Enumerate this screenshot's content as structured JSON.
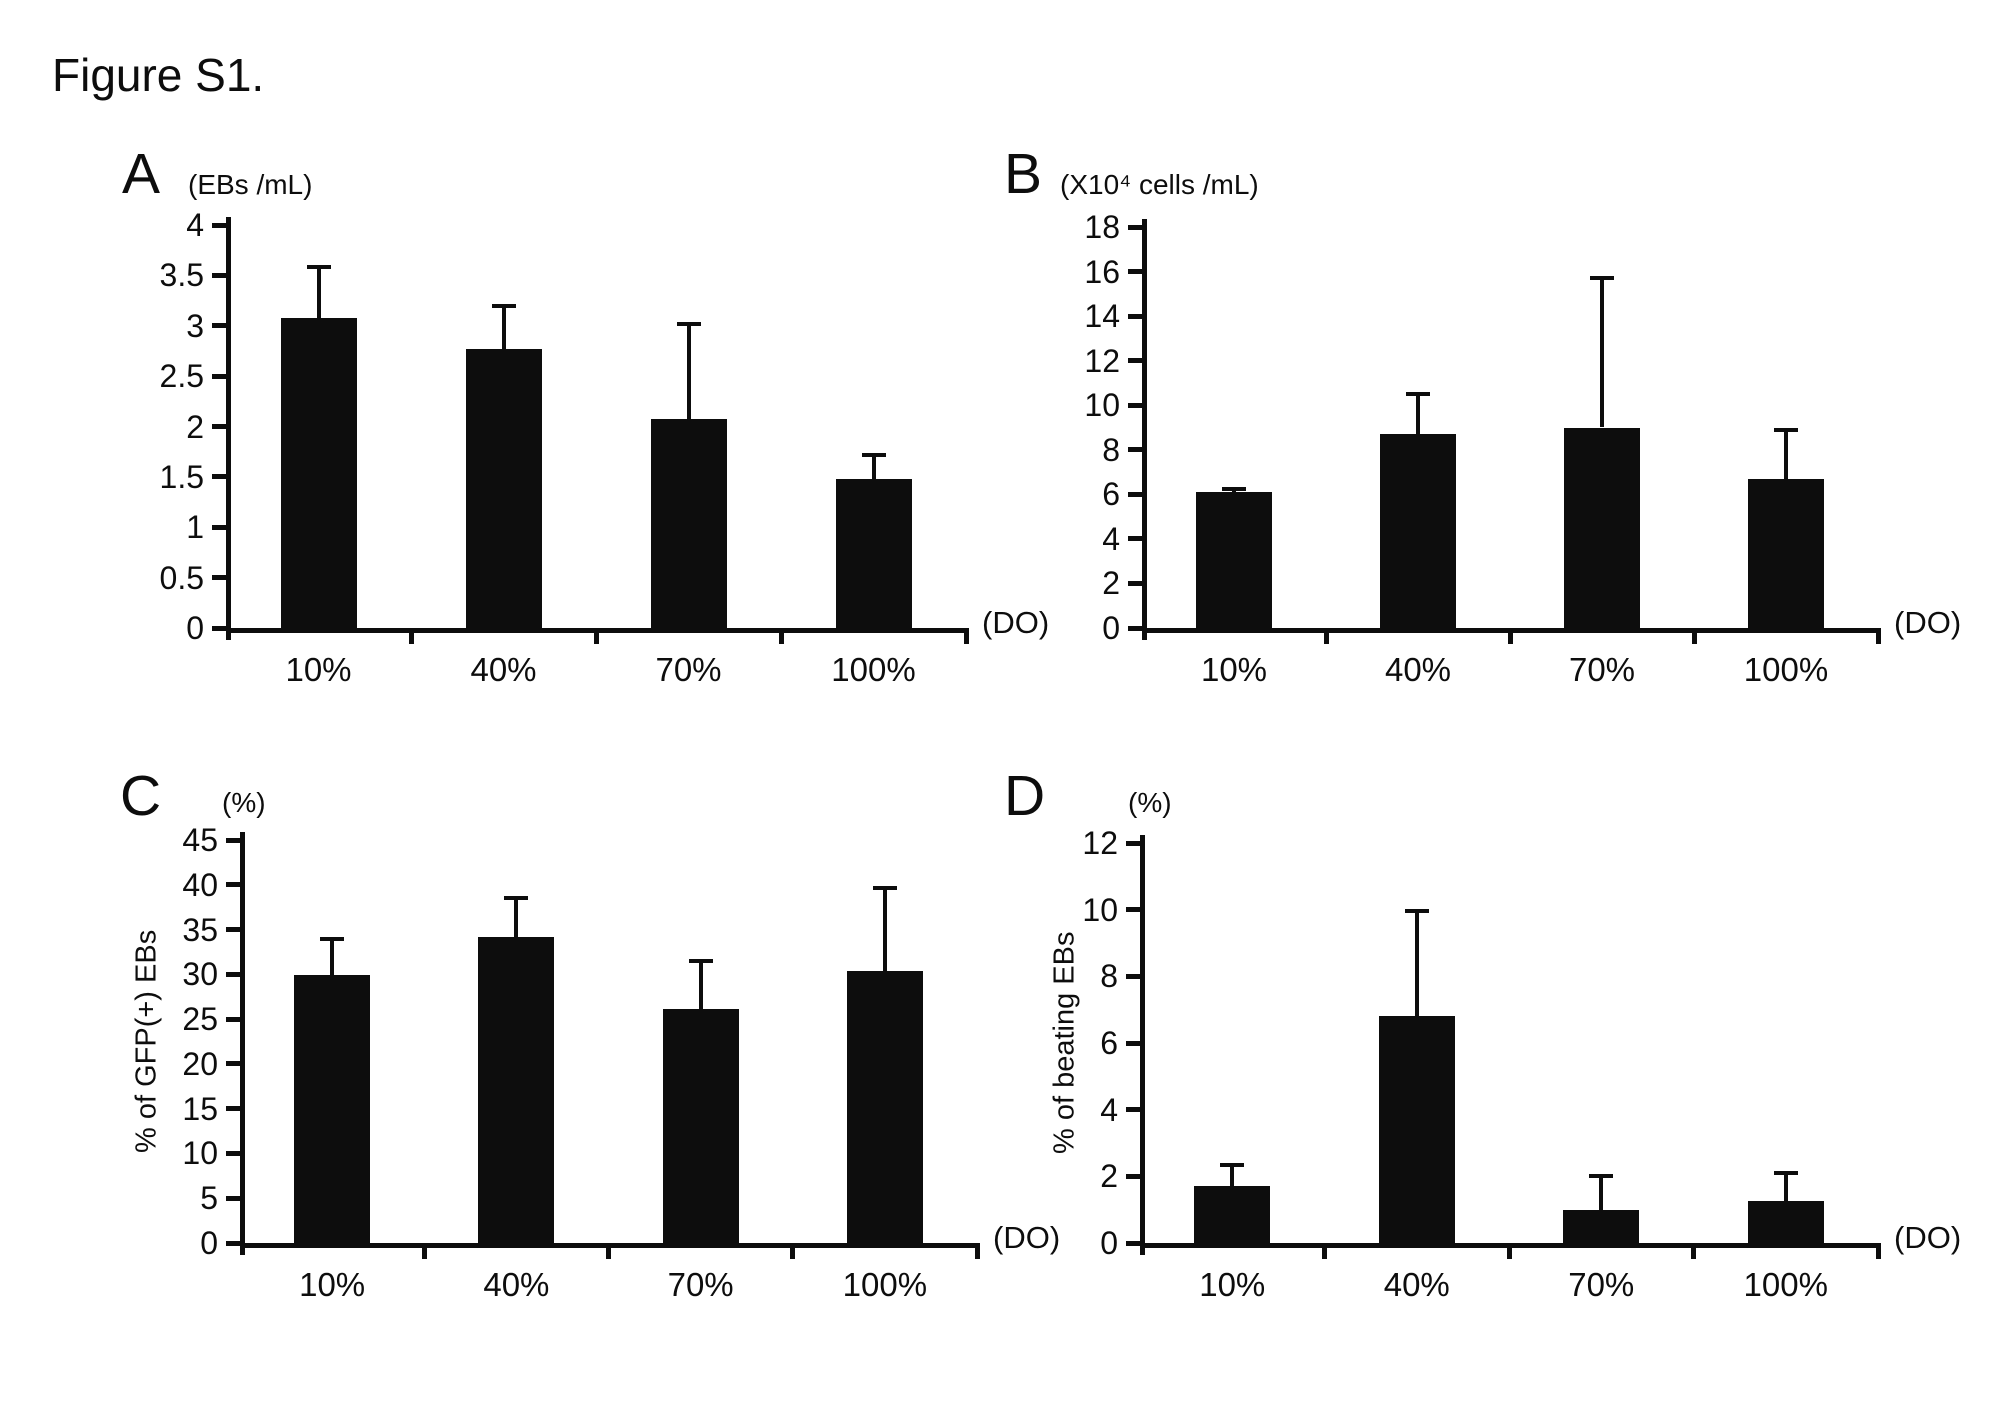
{
  "figure": {
    "title": "Figure S1."
  },
  "bar_color": "#0d0d0d",
  "background_color": "#ffffff",
  "chart_data": [
    {
      "type": "bar",
      "panel_label": "A",
      "unit_label": "(EBs /mL)",
      "ylabel": "",
      "x_axis_label": "(DO)",
      "categories": [
        "10%",
        "40%",
        "70%",
        "100%"
      ],
      "values": [
        3.08,
        2.77,
        2.07,
        1.48
      ],
      "errors_plus": [
        0.5,
        0.43,
        0.95,
        0.24
      ],
      "ylim": [
        0,
        4
      ],
      "yticks": [
        0,
        0.5,
        1,
        1.5,
        2,
        2.5,
        3,
        3.5,
        4
      ],
      "grid": false,
      "legend": false
    },
    {
      "type": "bar",
      "panel_label": "B",
      "unit_label": "(X10⁴ cells /mL)",
      "ylabel": "",
      "x_axis_label": "(DO)",
      "categories": [
        "10%",
        "40%",
        "70%",
        "100%"
      ],
      "values": [
        6.1,
        8.7,
        9.0,
        6.7
      ],
      "errors_plus": [
        0.15,
        1.8,
        6.7,
        2.2
      ],
      "ylim": [
        0,
        18
      ],
      "yticks": [
        0,
        2,
        4,
        6,
        8,
        10,
        12,
        14,
        16,
        18
      ],
      "grid": false,
      "legend": false
    },
    {
      "type": "bar",
      "panel_label": "C",
      "unit_label": "(%)",
      "ylabel": "% of GFP(+) EBs",
      "x_axis_label": "(DO)",
      "categories": [
        "10%",
        "40%",
        "70%",
        "100%"
      ],
      "values": [
        29.9,
        34.2,
        26.1,
        30.4
      ],
      "errors_plus": [
        4.1,
        4.3,
        5.4,
        9.2
      ],
      "ylim": [
        0,
        45
      ],
      "yticks": [
        0,
        5,
        10,
        15,
        20,
        25,
        30,
        35,
        40,
        45
      ],
      "grid": false,
      "legend": false
    },
    {
      "type": "bar",
      "panel_label": "D",
      "unit_label": "(%)",
      "ylabel": "% of beating EBs",
      "x_axis_label": "(DO)",
      "categories": [
        "10%",
        "40%",
        "70%",
        "100%"
      ],
      "values": [
        1.7,
        6.8,
        1.0,
        1.25
      ],
      "errors_plus": [
        0.65,
        3.15,
        1.0,
        0.85
      ],
      "ylim": [
        0,
        12
      ],
      "yticks": [
        0,
        2,
        4,
        6,
        8,
        10,
        12
      ],
      "grid": false,
      "legend": false
    }
  ]
}
